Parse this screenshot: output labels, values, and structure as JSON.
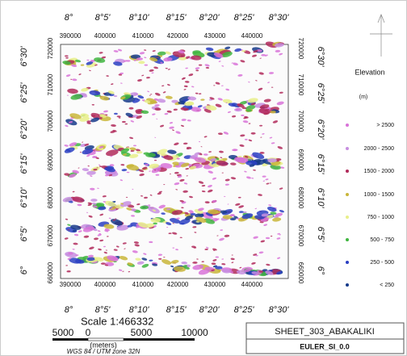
{
  "map": {
    "longitude_labels": [
      "8°",
      "8°5'",
      "8°10'",
      "8°15'",
      "8°20'",
      "8°25'",
      "8°30'"
    ],
    "easting_labels": [
      "390000",
      "400000",
      "410000",
      "420000",
      "430000",
      "440000"
    ],
    "latitude_labels": [
      "6°30'",
      "6°25'",
      "6°20'",
      "6°15'",
      "6°10'",
      "6°5'",
      "6°"
    ],
    "northing_labels": [
      "720000",
      "710000",
      "700000",
      "690000",
      "680000",
      "670000",
      "660000"
    ]
  },
  "legend": {
    "title": "Elevation",
    "unit": "(m)",
    "items": [
      {
        "label": "> 2500",
        "color": "#d873d8"
      },
      {
        "label": "2000 - 2500",
        "color": "#c78ee0"
      },
      {
        "label": "1500 - 2000",
        "color": "#b02a5a"
      },
      {
        "label": "1000 - 1500",
        "color": "#c9b63a"
      },
      {
        "label": "750 - 1000",
        "color": "#e8ef8a"
      },
      {
        "label": "500 - 750",
        "color": "#3fb53f"
      },
      {
        "label": "250 - 500",
        "color": "#2a3fc2"
      },
      {
        "label": "< 250",
        "color": "#163a8a"
      }
    ]
  },
  "scale": {
    "text": "Scale 1:466332",
    "bar_labels": [
      "5000",
      "0",
      "5000",
      "10000"
    ],
    "unit": "(meters)",
    "projection": "WGS 84 / UTM zone 32N"
  },
  "sheet": {
    "title": "SHEET_303_ABAKALIKI",
    "subtitle": "EULER_SI_0.0"
  }
}
